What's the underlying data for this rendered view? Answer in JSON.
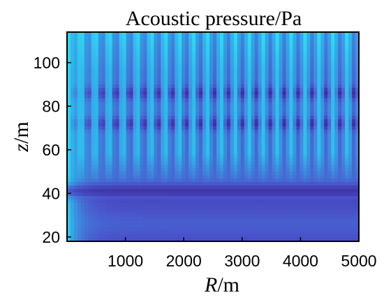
{
  "chart_data": {
    "type": "heatmap",
    "title": "Acoustic pressure/Pa",
    "xlabel": {
      "italic": "R",
      "unit": "/m"
    },
    "ylabel": {
      "italic": "z",
      "unit": "/m"
    },
    "xlim": [
      0,
      5000
    ],
    "ylim": [
      114,
      18
    ],
    "y_reversed": true,
    "xticks": [
      1000,
      2000,
      3000,
      4000,
      5000
    ],
    "yticks": [
      20,
      40,
      60,
      80,
      100
    ],
    "colormap": [
      "#3c2ea0",
      "#4a55cc",
      "#3f86dc",
      "#2fb4ea",
      "#38e6f8"
    ],
    "grid": false,
    "colorbar": false,
    "features": {
      "dark_band_depth": 41,
      "node_lines_depth": [
        72,
        86
      ],
      "interference_period_m": 240,
      "bright_near_field_edge_m": 200
    }
  }
}
